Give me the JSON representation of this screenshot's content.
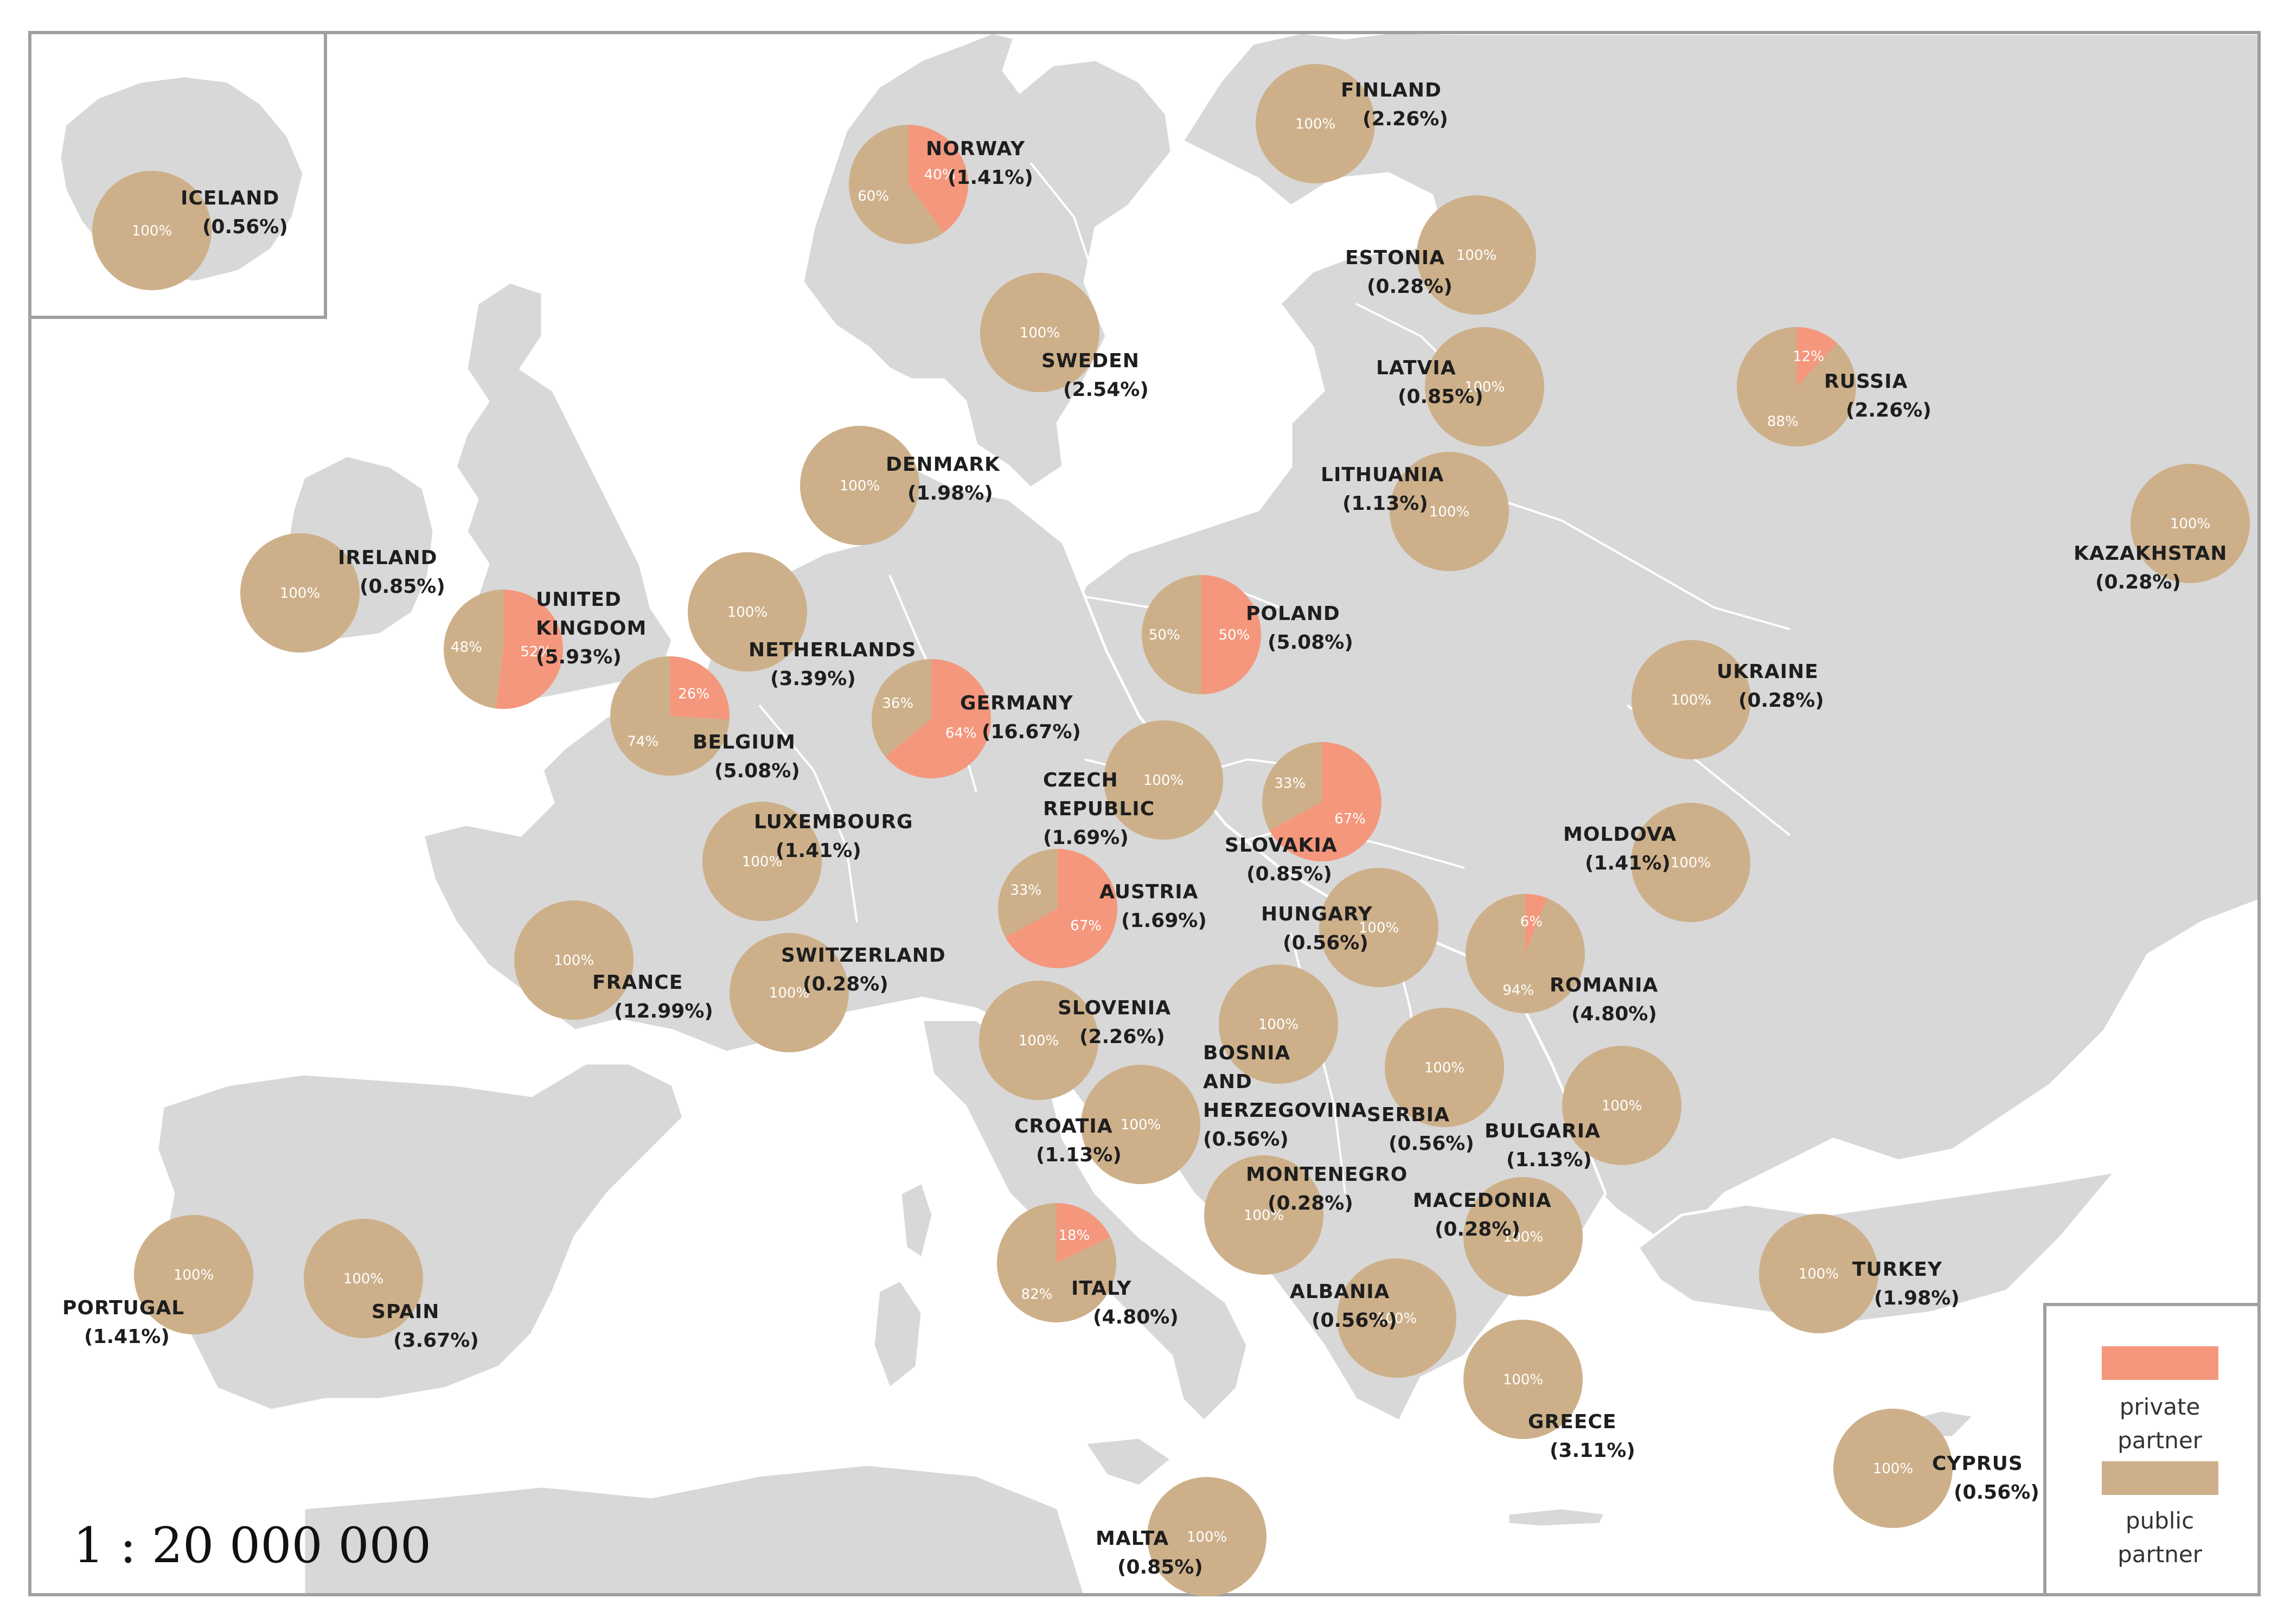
{
  "colors": {
    "private": "#f4977d",
    "public": "#cdb08a",
    "land": "#d8d8d8",
    "border": "#ffffff",
    "frame": "#a0a0a0",
    "sea": "#ffffff"
  },
  "scale": "1 : 20 000 000",
  "legend": {
    "private": [
      "private",
      "partner"
    ],
    "public": [
      "public",
      "partner"
    ]
  },
  "countries": [
    {
      "name": [
        "ICELAND"
      ],
      "share": "(0.56%)",
      "private": 0
    },
    {
      "name": [
        "NORWAY"
      ],
      "share": "(1.41%)",
      "private": 40
    },
    {
      "name": [
        "FINLAND"
      ],
      "share": "(2.26%)",
      "private": 0
    },
    {
      "name": [
        "ESTONIA"
      ],
      "share": "(0.28%)",
      "private": 0
    },
    {
      "name": [
        "SWEDEN"
      ],
      "share": "(2.54%)",
      "private": 0
    },
    {
      "name": [
        "LATVIA"
      ],
      "share": "(0.85%)",
      "private": 0
    },
    {
      "name": [
        "RUSSIA"
      ],
      "share": "(2.26%)",
      "private": 12
    },
    {
      "name": [
        "DENMARK"
      ],
      "share": "(1.98%)",
      "private": 0
    },
    {
      "name": [
        "LITHUANIA"
      ],
      "share": "(1.13%)",
      "private": 0
    },
    {
      "name": [
        "KAZAKHSTAN"
      ],
      "share": "(0.28%)",
      "private": 0
    },
    {
      "name": [
        "IRELAND"
      ],
      "share": "(0.85%)",
      "private": 0
    },
    {
      "name": [
        "UNITED",
        "KINGDOM"
      ],
      "share": "(5.93%)",
      "private": 52
    },
    {
      "name": [
        "NETHERLANDS"
      ],
      "share": "(3.39%)",
      "private": 0
    },
    {
      "name": [
        "POLAND"
      ],
      "share": "(5.08%)",
      "private": 50
    },
    {
      "name": [
        "BELGIUM"
      ],
      "share": "(5.08%)",
      "private": 26
    },
    {
      "name": [
        "GERMANY"
      ],
      "share": "(16.67%)",
      "private": 64
    },
    {
      "name": [
        "UKRAINE"
      ],
      "share": "(0.28%)",
      "private": 0
    },
    {
      "name": [
        "CZECH",
        "REPUBLIC"
      ],
      "share": "(1.69%)",
      "private": 0
    },
    {
      "name": [
        "SLOVAKIA"
      ],
      "share": "(0.85%)",
      "private": 67
    },
    {
      "name": [
        "LUXEMBOURG"
      ],
      "share": "(1.41%)",
      "private": 0
    },
    {
      "name": [
        "MOLDOVA"
      ],
      "share": "(1.41%)",
      "private": 0
    },
    {
      "name": [
        "AUSTRIA"
      ],
      "share": "(1.69%)",
      "private": 67
    },
    {
      "name": [
        "HUNGARY"
      ],
      "share": "(0.56%)",
      "private": 0
    },
    {
      "name": [
        "ROMANIA"
      ],
      "share": "(4.80%)",
      "private": 6
    },
    {
      "name": [
        "SWITZERLAND"
      ],
      "share": "(0.28%)",
      "private": 0
    },
    {
      "name": [
        "FRANCE"
      ],
      "share": "(12.99%)",
      "private": 0
    },
    {
      "name": [
        "SLOVENIA"
      ],
      "share": "(2.26%)",
      "private": 0
    },
    {
      "name": [
        "BOSNIA",
        "AND",
        "HERZEGOVINA"
      ],
      "share": "(0.56%)",
      "private": 0
    },
    {
      "name": [
        "SERBIA"
      ],
      "share": "(0.56%)",
      "private": 0
    },
    {
      "name": [
        "BULGARIA"
      ],
      "share": "(1.13%)",
      "private": 0
    },
    {
      "name": [
        "CROATIA"
      ],
      "share": "(1.13%)",
      "private": 0
    },
    {
      "name": [
        "MONTENEGRO"
      ],
      "share": "(0.28%)",
      "private": 0
    },
    {
      "name": [
        "MACEDONIA"
      ],
      "share": "(0.28%)",
      "private": 0
    },
    {
      "name": [
        "ITALY"
      ],
      "share": "(4.80%)",
      "private": 18
    },
    {
      "name": [
        "PORTUGAL"
      ],
      "share": "(1.41%)",
      "private": 0
    },
    {
      "name": [
        "SPAIN"
      ],
      "share": "(3.67%)",
      "private": 0
    },
    {
      "name": [
        "TURKEY"
      ],
      "share": "(1.98%)",
      "private": 0
    },
    {
      "name": [
        "ALBANIA"
      ],
      "share": "(0.56%)",
      "private": 0
    },
    {
      "name": [
        "GREECE"
      ],
      "share": "(3.11%)",
      "private": 0
    },
    {
      "name": [
        "CYPRUS"
      ],
      "share": "(0.56%)",
      "private": 0
    },
    {
      "name": [
        "MALTA"
      ],
      "share": "(0.85%)",
      "private": 0
    }
  ]
}
